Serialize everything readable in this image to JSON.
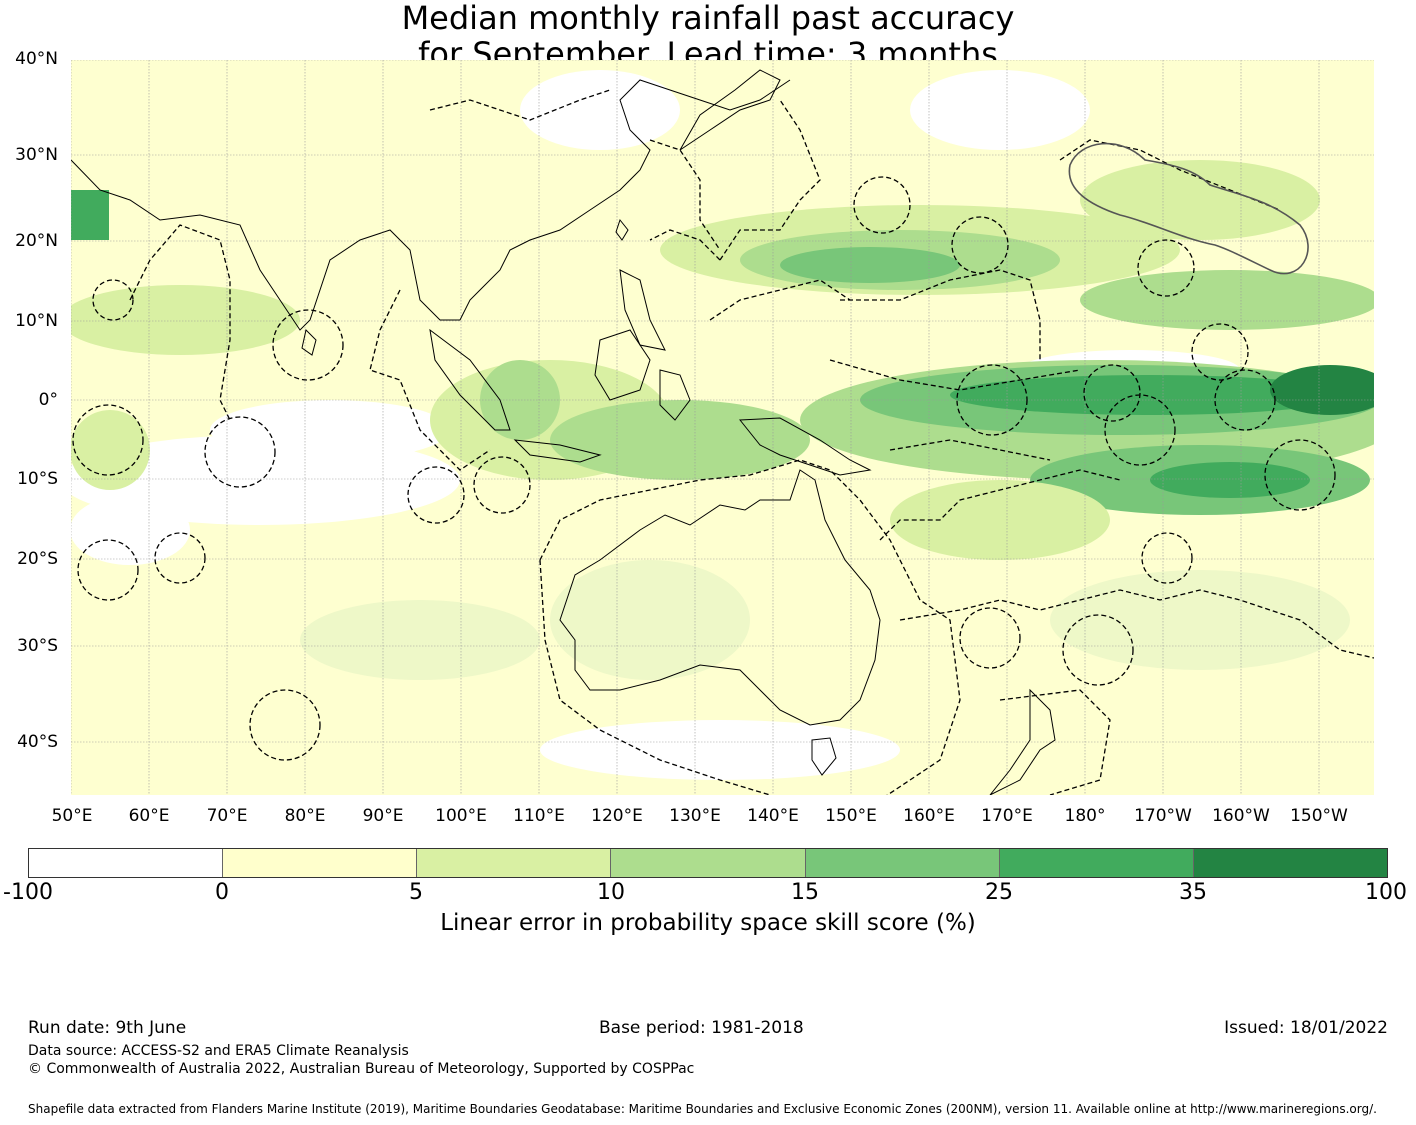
{
  "title_line1": "Median monthly rainfall past accuracy",
  "title_line2": "for September. Lead time: 3 months",
  "map": {
    "lat_labels": [
      "40°N",
      "30°N",
      "20°N",
      "10°N",
      "0°",
      "10°S",
      "20°S",
      "30°S",
      "40°S"
    ],
    "lat_values": [
      40,
      30,
      20,
      10,
      0,
      -10,
      -20,
      -30,
      -40
    ],
    "lon_labels": [
      "50°E",
      "60°E",
      "70°E",
      "80°E",
      "90°E",
      "100°E",
      "110°E",
      "120°E",
      "130°E",
      "140°E",
      "150°E",
      "160°E",
      "170°E",
      "180°",
      "170°W",
      "160°W",
      "150°W"
    ],
    "lon_values": [
      50,
      60,
      70,
      80,
      90,
      100,
      110,
      120,
      130,
      140,
      150,
      160,
      170,
      180,
      190,
      200,
      210
    ],
    "lon_range": [
      50,
      217
    ],
    "lat_range": [
      -46,
      41
    ]
  },
  "colorbar": {
    "ticks": [
      "-100",
      "0",
      "5",
      "10",
      "15",
      "25",
      "35",
      "100"
    ],
    "colors": [
      "#ffffff",
      "#ffffcc",
      "#d9f0a3",
      "#addd8e",
      "#78c679",
      "#41ab5d",
      "#238443"
    ],
    "label": "Linear error in probability space skill score (%)"
  },
  "footer": {
    "run_date": "Run date: 9th June",
    "base_period": "Base period: 1981-2018",
    "issued": "Issued: 18/01/2022",
    "data_source": "Data source: ACCESS-S2 and ERA5 Climate Reanalysis",
    "copyright": "© Commonwealth of Australia 2022, Australian Bureau of Meteorology, Supported by COSPPac",
    "shapefile": "Shapefile data extracted from Flanders Marine Institute (2019), Maritime Boundaries Geodatabase: Maritime Boundaries and Exclusive Economic Zones (200NM), version 11. Available online at http://www.marineregions.org/."
  }
}
